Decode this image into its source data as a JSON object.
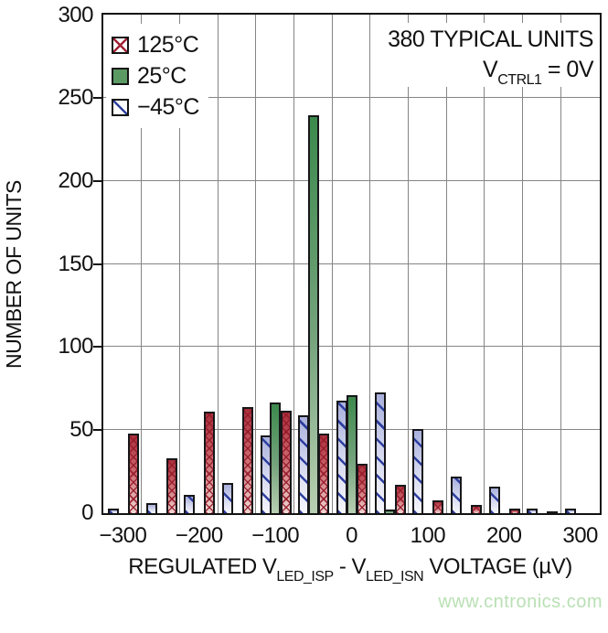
{
  "annotation": {
    "line1": "380 TYPICAL UNITS",
    "v_pre": "V",
    "v_sub": "CTRL1",
    "v_post": " = 0V"
  },
  "legend": {
    "items": [
      {
        "label": "125°C",
        "swatch": "red-crosshatch"
      },
      {
        "label": "25°C",
        "swatch": "green-solid"
      },
      {
        "label": "−45°C",
        "swatch": "blue-diagonal"
      }
    ]
  },
  "watermark": "www.cntronics.com",
  "chart_data": {
    "type": "bar",
    "title": "",
    "xlabel_parts": {
      "p1": "REGULATED V",
      "sub1": "LED_ISP",
      "p2": " - V",
      "sub2": "LED_ISN",
      "p3": " VOLTAGE (µV)"
    },
    "ylabel": "NUMBER OF UNITS",
    "categories": [
      -300,
      -250,
      -200,
      -150,
      -100,
      -50,
      0,
      50,
      100,
      150,
      200,
      250,
      300
    ],
    "series": [
      {
        "name": "−45°C",
        "color": "blue",
        "values": [
          3,
          6,
          11,
          18,
          47,
          59,
          68,
          73,
          51,
          22,
          16,
          3,
          3
        ]
      },
      {
        "name": "25°C",
        "color": "green",
        "values": [
          0,
          0,
          0,
          0,
          67,
          240,
          71,
          2,
          0,
          0,
          0,
          0,
          0
        ]
      },
      {
        "name": "125°C",
        "color": "red",
        "values": [
          48,
          33,
          61,
          64,
          62,
          48,
          30,
          17,
          8,
          5,
          3,
          1,
          0
        ]
      }
    ],
    "xlim": [
      -325,
      325
    ],
    "ylim": [
      0,
      300
    ],
    "x_ticks": [
      -300,
      -200,
      -100,
      0,
      100,
      200,
      300
    ],
    "y_ticks": [
      0,
      50,
      100,
      150,
      200,
      250,
      300
    ],
    "x_gridlines": [
      -275,
      -225,
      -175,
      -125,
      -75,
      -25,
      25,
      75,
      125,
      175,
      225,
      275
    ],
    "y_gridlines": [
      50,
      100,
      150,
      200,
      250
    ],
    "bin_width_uV": 50,
    "total_units": 380,
    "grid": true,
    "legend_position": "top-left"
  },
  "colors": {
    "frame": "#131313",
    "grid": "#858585",
    "series_red_top": "#a8303c",
    "series_red_bottom": "#f0d8d4",
    "series_red_hatch": "#96192a",
    "series_green_top": "#3c8a4c",
    "series_green_bottom": "#b8cfb2",
    "series_blue_top": "#a9b0dc",
    "series_blue_bottom": "#f6f6fd",
    "series_blue_hatch": "#2e3f9f",
    "watermark": "#b9e0b4"
  }
}
